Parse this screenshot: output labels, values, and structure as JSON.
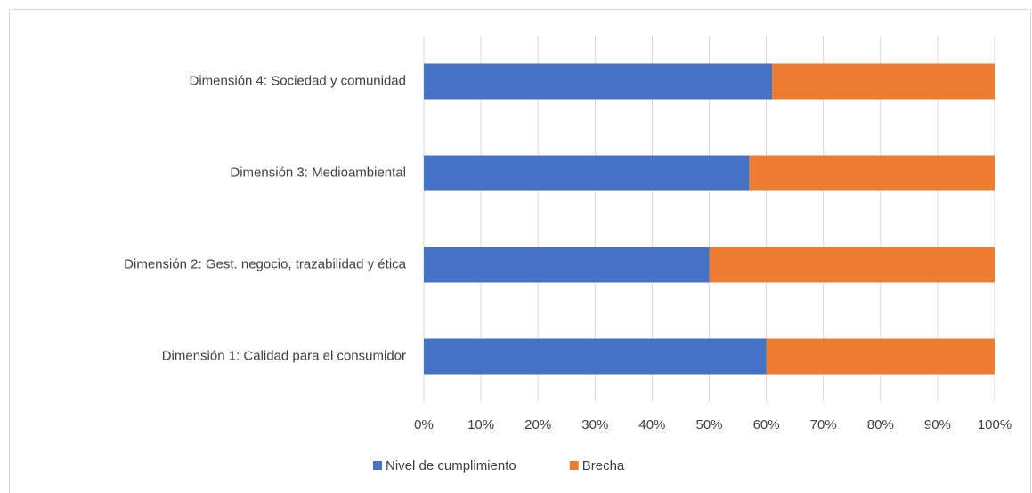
{
  "chart_data": {
    "type": "stacked_barh",
    "categories": [
      "Dimensión 1: Calidad para el consumidor",
      "Dimensión 2: Gest. negocio, trazabilidad y ética",
      "Dimensión 3: Medioambiental",
      "Dimensión 4: Sociedad y comunidad"
    ],
    "series": [
      {
        "name": "Nivel de cumplimiento",
        "color": "#4472c4",
        "values": [
          60,
          50,
          57,
          61
        ]
      },
      {
        "name": "Brecha",
        "color": "#ed7d31",
        "values": [
          40,
          50,
          43,
          39
        ]
      }
    ],
    "xlim": [
      0,
      100
    ],
    "xticks": [
      {
        "value": 0,
        "label": "0%"
      },
      {
        "value": 10,
        "label": "10%"
      },
      {
        "value": 20,
        "label": "20%"
      },
      {
        "value": 30,
        "label": "30%"
      },
      {
        "value": 40,
        "label": "40%"
      },
      {
        "value": 50,
        "label": "50%"
      },
      {
        "value": 60,
        "label": "60%"
      },
      {
        "value": 70,
        "label": "70%"
      },
      {
        "value": 80,
        "label": "80%"
      },
      {
        "value": 90,
        "label": "90%"
      },
      {
        "value": 100,
        "label": "100%"
      }
    ],
    "grid": true,
    "legend": "bottom"
  }
}
